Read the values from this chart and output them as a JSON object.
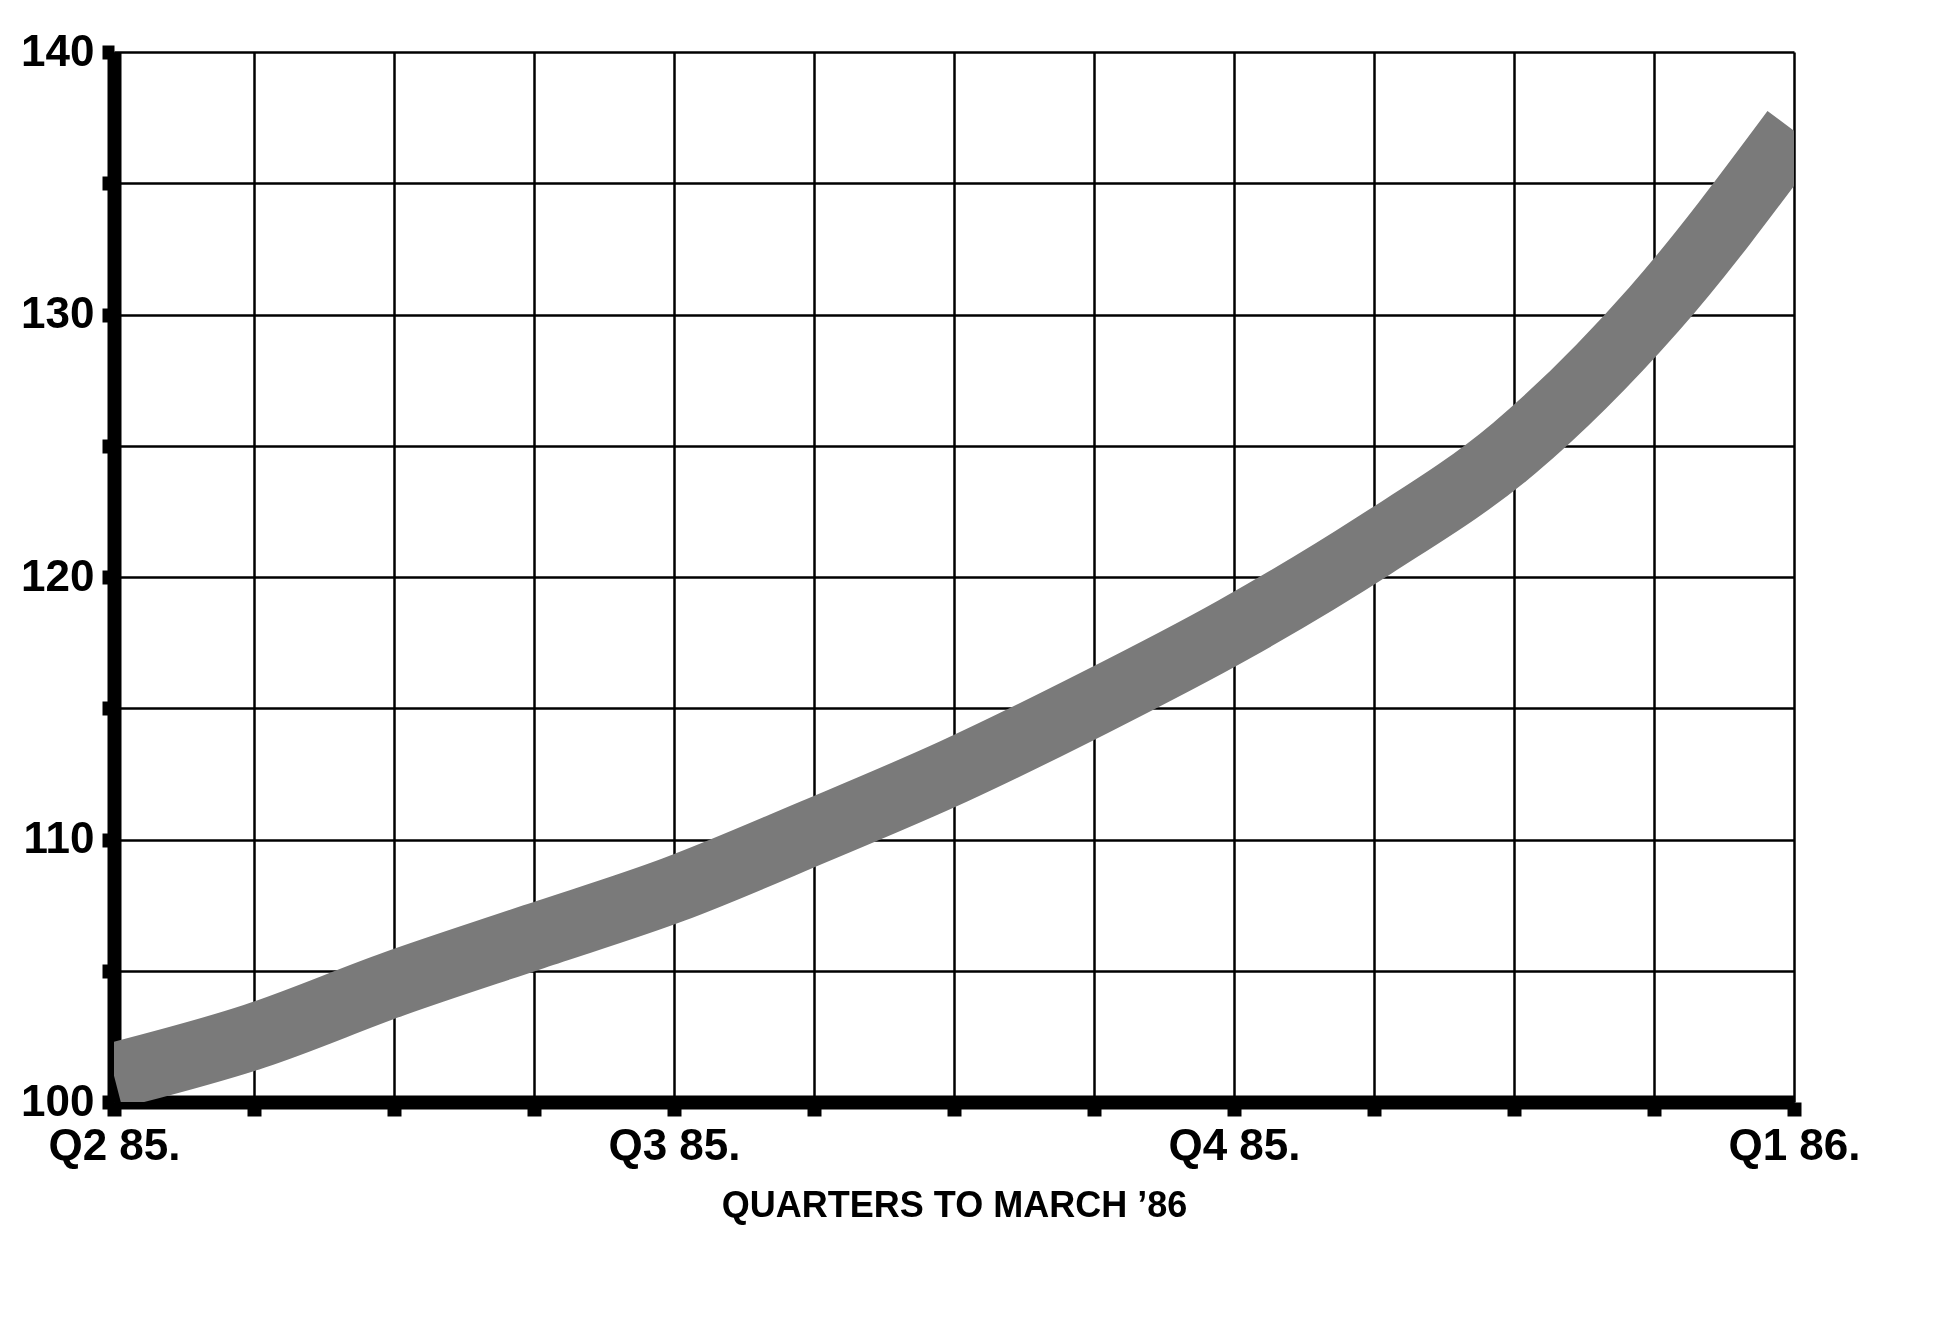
{
  "chart_data": {
    "type": "line",
    "xlabel": "QUARTERS TO MARCH ’86",
    "categories": [
      "Q2 85.",
      null,
      null,
      null,
      "Q3 85.",
      null,
      null,
      null,
      "Q4 85.",
      null,
      null,
      null,
      "Q1 86."
    ],
    "series": [
      {
        "color": "#7a7a7a",
        "values": [
          101,
          102.5,
          104.5,
          106.3,
          108.1,
          110.3,
          112.6,
          115.2,
          118,
          121.2,
          124.9,
          130.2,
          137
        ]
      }
    ],
    "ylim": [
      100,
      140
    ],
    "yticks": [
      100,
      {
        "value": 105,
        "label": null
      },
      110,
      {
        "value": 115,
        "label": null
      },
      120,
      {
        "value": 125,
        "label": null
      },
      130,
      {
        "value": 135,
        "label": null
      },
      140
    ],
    "grid": true,
    "marker": "none",
    "line_style": "solid"
  }
}
